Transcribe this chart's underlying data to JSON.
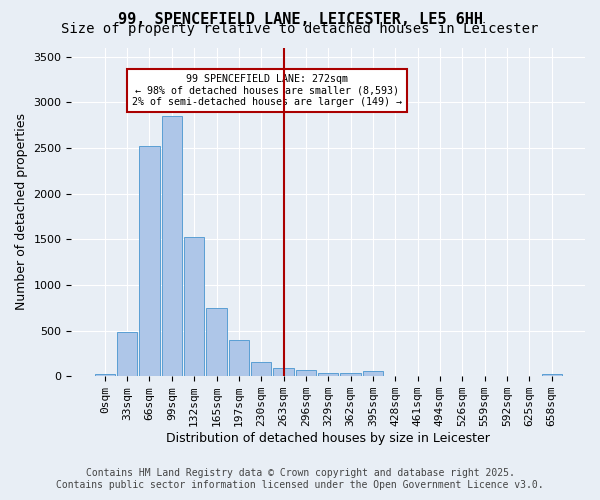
{
  "title": "99, SPENCEFIELD LANE, LEICESTER, LE5 6HH",
  "subtitle": "Size of property relative to detached houses in Leicester",
  "xlabel": "Distribution of detached houses by size in Leicester",
  "ylabel": "Number of detached properties",
  "footer_line1": "Contains HM Land Registry data © Crown copyright and database right 2025.",
  "footer_line2": "Contains public sector information licensed under the Open Government Licence v3.0.",
  "categories": [
    "0sqm",
    "33sqm",
    "66sqm",
    "99sqm",
    "132sqm",
    "165sqm",
    "197sqm",
    "230sqm",
    "263sqm",
    "296sqm",
    "329sqm",
    "362sqm",
    "395sqm",
    "428sqm",
    "461sqm",
    "494sqm",
    "526sqm",
    "559sqm",
    "592sqm",
    "625sqm",
    "658sqm"
  ],
  "values": [
    20,
    480,
    2520,
    2850,
    1530,
    750,
    400,
    155,
    90,
    65,
    40,
    40,
    55,
    0,
    0,
    0,
    0,
    0,
    0,
    0,
    25
  ],
  "bar_color": "#aec6e8",
  "bar_edge_color": "#5a9fd4",
  "vline_x_index": 8,
  "vline_color": "#aa0000",
  "annotation_title": "99 SPENCEFIELD LANE: 272sqm",
  "annotation_line1": "← 98% of detached houses are smaller (8,593)",
  "annotation_line2": "2% of semi-detached houses are larger (149) →",
  "annotation_box_color": "#aa0000",
  "background_color": "#e8eef5",
  "plot_bg_color": "#e8eef5",
  "grid_color": "#ffffff",
  "ylim": [
    0,
    3600
  ],
  "yticks": [
    0,
    500,
    1000,
    1500,
    2000,
    2500,
    3000,
    3500
  ],
  "title_fontsize": 11,
  "subtitle_fontsize": 10,
  "axis_label_fontsize": 9,
  "tick_fontsize": 8,
  "footer_fontsize": 7
}
